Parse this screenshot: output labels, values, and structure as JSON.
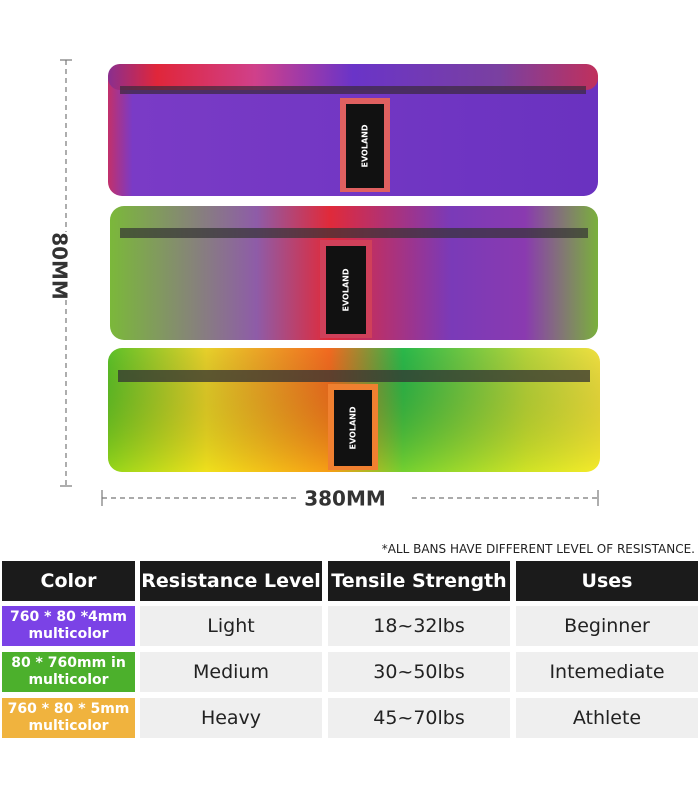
{
  "dimensions": {
    "height": "80MM",
    "length": "380MM"
  },
  "bands": [
    {
      "logo": "EVOLAND"
    },
    {
      "logo": "EVOLAND"
    },
    {
      "logo": "EVOLAND"
    }
  ],
  "note": "*ALL BANS HAVE DIFFERENT LEVEL OF RESISTANCE.",
  "table": {
    "header": [
      "Color",
      "Resistance Level",
      "Tensile Strength",
      "Uses"
    ],
    "rows": [
      [
        "760 * 80 *4mm multicolor",
        "Light",
        "18~32lbs",
        "Beginner"
      ],
      [
        "80 * 760mm in multicolor",
        "Medium",
        "30~50lbs",
        "Intemediate"
      ],
      [
        "760 * 80 * 5mm multicolor",
        "Heavy",
        "45~70lbs",
        "Athlete"
      ]
    ]
  }
}
